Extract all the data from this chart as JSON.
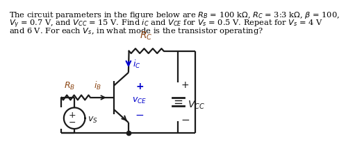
{
  "bg_color": "#ffffff",
  "text_color": "#000000",
  "circuit_color": "#1a1a1a",
  "blue_color": "#0000cc",
  "brown_color": "#8B4513",
  "title_lines": [
    "The circuit parameters in the figure below are $R_B$ = 100 k$\\Omega$, $R_C$ = 3:3 k$\\Omega$, $\\beta$ = 100,",
    "$V_\\gamma$ = 0.7 V, and $V_{CC}$ = 15 V. Find $i_C$ and $V_{CE}$ for $V_s$ = 0.5 V. Repeat for $V_s$ = 4 V",
    "and 6 V. For each $V_s$, in what mode is the transistor operating?"
  ],
  "rc_label": "$R_C$",
  "rb_label": "$R_B$",
  "ib_label": "$i_B$",
  "ic_label": "$i_C$",
  "vce_label": "$v_{CE}$",
  "vcc_label": "$V_{CC}$",
  "vs_label": "$v_S$"
}
